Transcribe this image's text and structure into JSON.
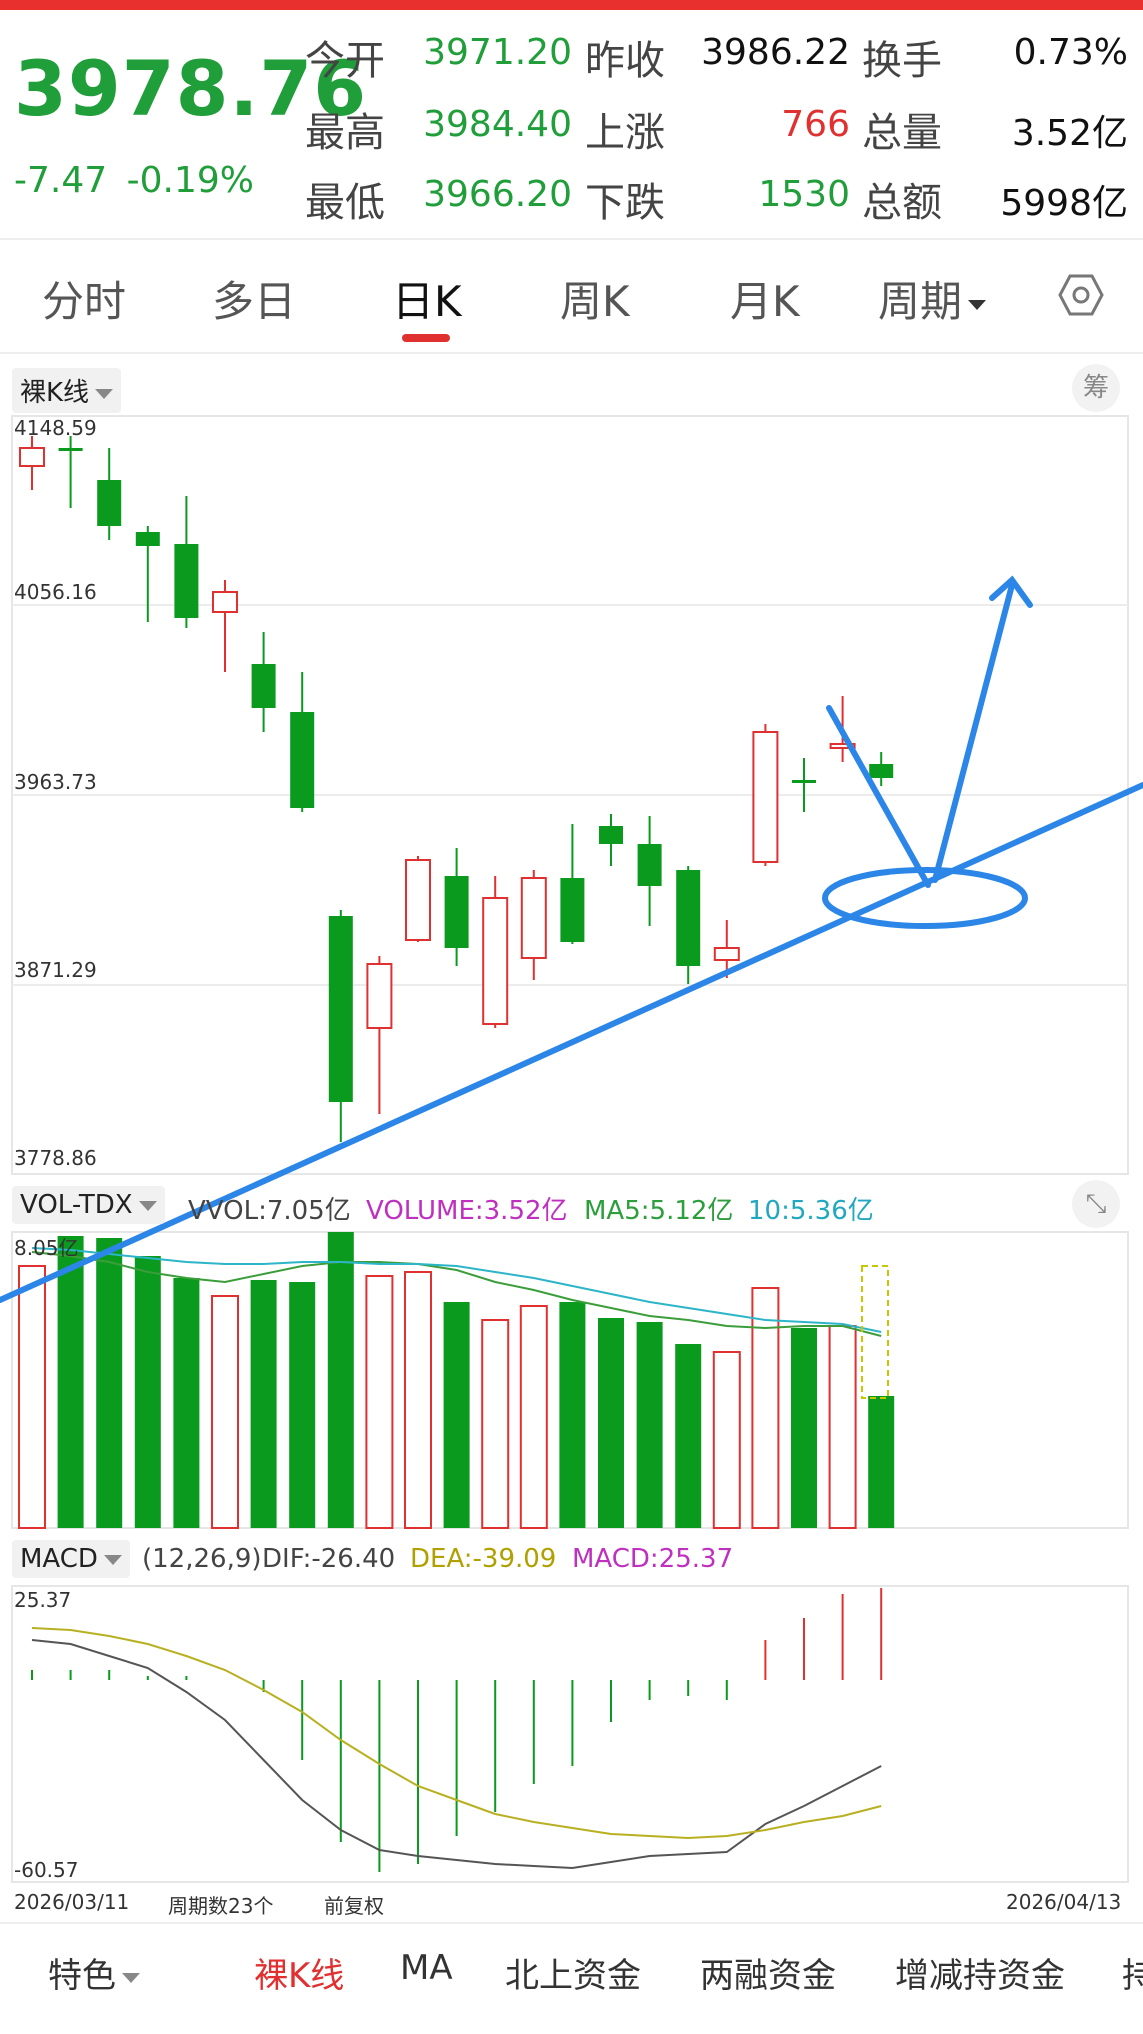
{
  "quote": {
    "price": "3978.76",
    "change": "-7.47",
    "change_pct": "-0.19%",
    "rows": [
      {
        "l1": "今开",
        "v1": "3971.20",
        "l2": "昨收",
        "v2": "3986.22",
        "l3": "换手",
        "v3": "0.73%"
      },
      {
        "l1": "最高",
        "v1": "3984.40",
        "l2": "上涨",
        "v2": "766",
        "l3": "总量",
        "v3": "3.52亿"
      },
      {
        "l1": "最低",
        "v1": "3966.20",
        "l2": "下跌",
        "v2": "1530",
        "l3": "总额",
        "v3": "5998亿"
      }
    ]
  },
  "tabs": {
    "fenshi": "分时",
    "duori": "多日",
    "rik": "日K",
    "zhouk": "周K",
    "yuek": "月K",
    "zhouqi": "周期",
    "active": "日K",
    "settings_icon": "hexagon-settings-icon"
  },
  "kline": {
    "mode_label": "裸K线",
    "chip_button": "筹",
    "y_labels": [
      "4148.59",
      "4056.16",
      "3963.73",
      "3871.29",
      "3778.86"
    ]
  },
  "volume": {
    "mode_label": "VOL-TDX",
    "vvol": "VVOL:7.05亿",
    "volume": "VOLUME:3.52亿",
    "ma5": "MA5:5.12亿",
    "ma10": "10:5.36亿",
    "max_label": "8.05亿"
  },
  "macd": {
    "mode_label": "MACD",
    "params": "(12,26,9)",
    "dif": "DIF:-26.40",
    "dea": "DEA:-39.09",
    "macd": "MACD:25.37",
    "top_label": "25.37",
    "bottom_label": "-60.57"
  },
  "footer_axis": {
    "start_date": "2026/03/11",
    "period_count": "周期数23个",
    "adjust": "前复权",
    "end_date": "2026/04/13"
  },
  "bottom_nav": [
    "特色",
    "裸K线",
    "MA",
    "北上资金",
    "两融资金",
    "增减持资金",
    "持"
  ],
  "colors": {
    "up": "#e03030",
    "down": "#0a9a1e",
    "accent": "#e03030",
    "annotation": "#2b86e8"
  }
}
